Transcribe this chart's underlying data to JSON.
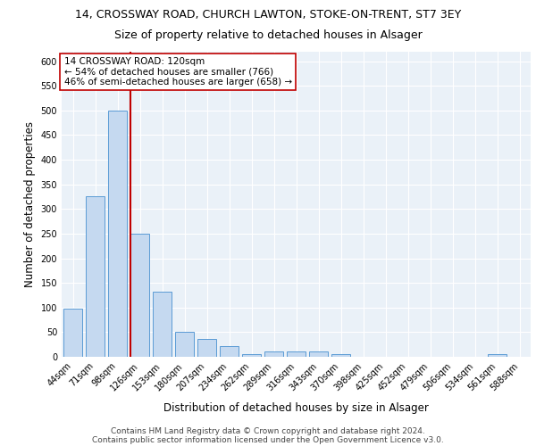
{
  "title_line1": "14, CROSSWAY ROAD, CHURCH LAWTON, STOKE-ON-TRENT, ST7 3EY",
  "title_line2": "Size of property relative to detached houses in Alsager",
  "xlabel": "Distribution of detached houses by size in Alsager",
  "ylabel": "Number of detached properties",
  "bar_labels": [
    "44sqm",
    "71sqm",
    "98sqm",
    "126sqm",
    "153sqm",
    "180sqm",
    "207sqm",
    "234sqm",
    "262sqm",
    "289sqm",
    "316sqm",
    "343sqm",
    "370sqm",
    "398sqm",
    "425sqm",
    "452sqm",
    "479sqm",
    "506sqm",
    "534sqm",
    "561sqm",
    "588sqm"
  ],
  "bar_values": [
    98,
    325,
    500,
    250,
    133,
    51,
    36,
    21,
    5,
    10,
    10,
    10,
    5,
    0,
    0,
    0,
    0,
    0,
    0,
    5,
    0
  ],
  "bar_color": "#c5d9f0",
  "bar_edge_color": "#5b9bd5",
  "reference_line_color": "#c00000",
  "annotation_text": "14 CROSSWAY ROAD: 120sqm\n← 54% of detached houses are smaller (766)\n46% of semi-detached houses are larger (658) →",
  "annotation_box_color": "white",
  "annotation_box_edge_color": "#c00000",
  "ylim": [
    0,
    620
  ],
  "yticks": [
    0,
    50,
    100,
    150,
    200,
    250,
    300,
    350,
    400,
    450,
    500,
    550,
    600
  ],
  "plot_background": "#eaf1f8",
  "footer_line1": "Contains HM Land Registry data © Crown copyright and database right 2024.",
  "footer_line2": "Contains public sector information licensed under the Open Government Licence v3.0.",
  "title_fontsize": 9,
  "subtitle_fontsize": 9,
  "axis_label_fontsize": 8.5,
  "tick_fontsize": 7,
  "footer_fontsize": 6.5,
  "annotation_fontsize": 7.5
}
